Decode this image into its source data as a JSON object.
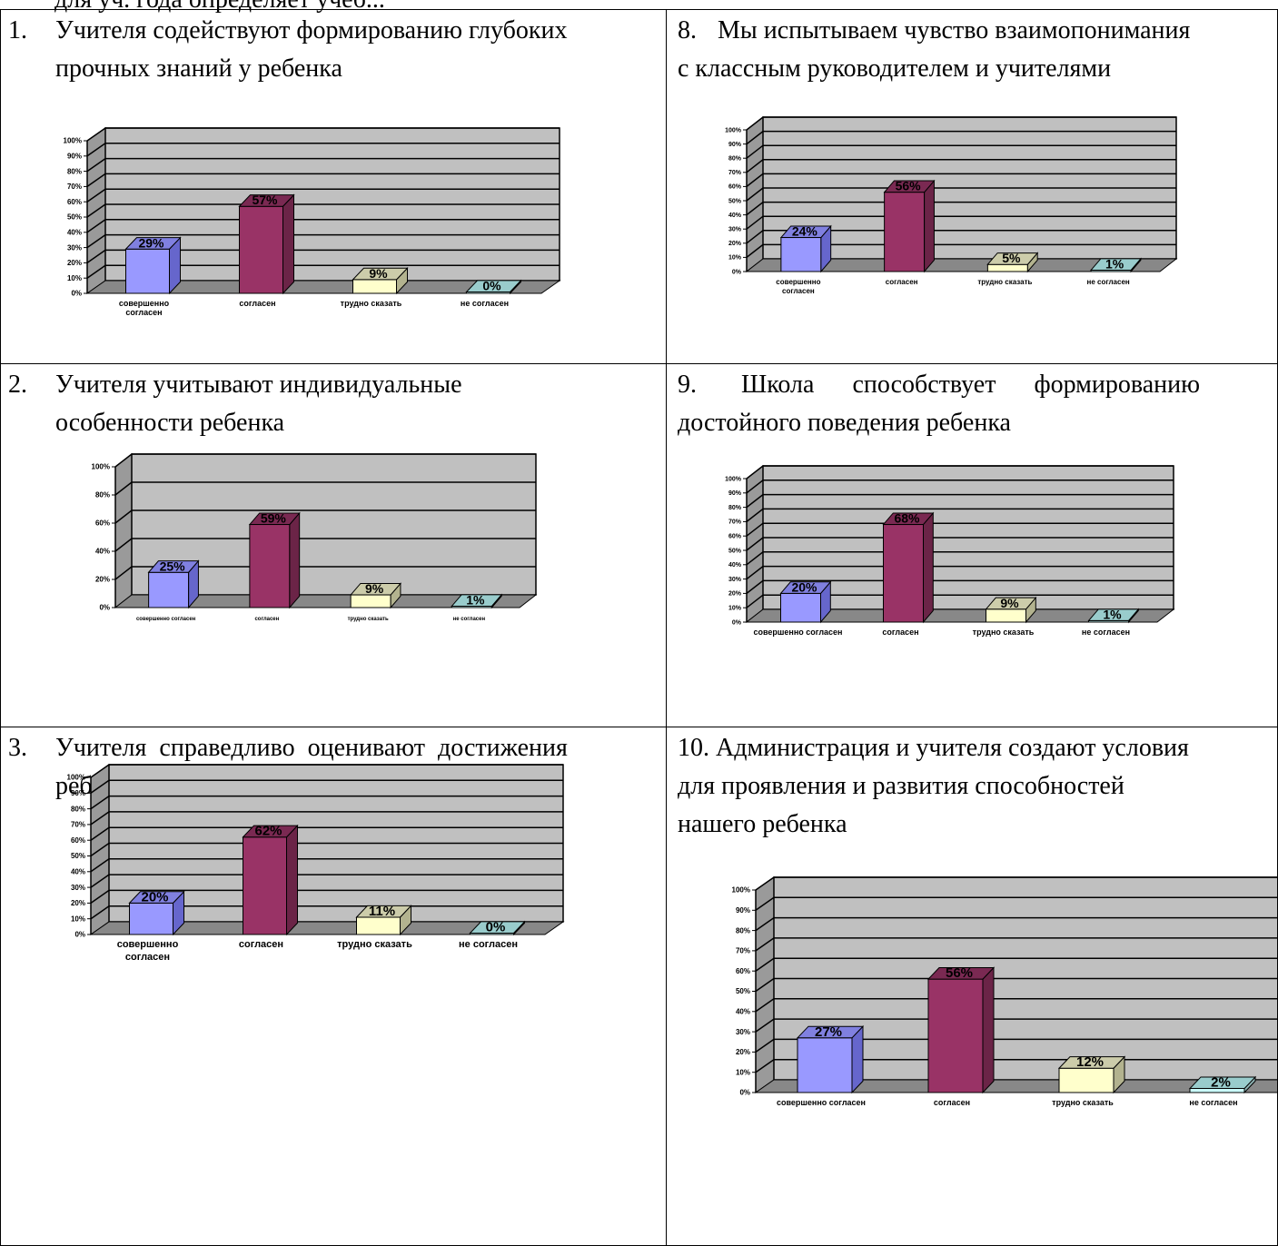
{
  "page": {
    "top_fragment": "для уч. года определяет учеб..."
  },
  "cells": [
    {
      "id": "q1",
      "number": "1.",
      "title": "Учителя содействуют формированию  глубоких прочных знаний  у ребенка",
      "title_lines": [
        "Учителя содействуют формированию  глубоких",
        "прочных знаний  у ребенка"
      ]
    },
    {
      "id": "q8",
      "number": "8.",
      "title": "Мы испытываем чувство взаимопонимания с классным руководителем и учителями",
      "title_lines": [
        "Мы испытываем чувство взаимопонимания",
        "с классным руководителем и учителями"
      ]
    },
    {
      "id": "q2",
      "number": "2.",
      "title": "Учителя учитывают индивидуальные особенности ребенка",
      "title_lines": [
        "Учителя учитывают индивидуальные",
        "особенности ребенка"
      ]
    },
    {
      "id": "q9",
      "number": "9.",
      "title": "Школа способствует формированию достойного поведения ребенка",
      "title_lines": [
        "Школа      способствует      формированию",
        "достойного поведения ребенка"
      ]
    },
    {
      "id": "q3",
      "number": "3.",
      "title": "Учителя справедливо оценивают достижения ребенка в учебе",
      "title_lines": [
        "Учителя  справедливо  оценивают  достижения",
        "ребенка в учебе"
      ]
    },
    {
      "id": "q10",
      "number": "10.",
      "title": "Администрация и учителя создают условия для проявления и развития способностей нашего ребенка",
      "title_lines": [
        "Администрация и учителя создают условия",
        "для проявления и развития способностей",
        "нашего ребенка"
      ]
    }
  ],
  "chart_data": [
    {
      "id": "q1",
      "type": "bar",
      "title": "",
      "xlabel": "",
      "ylabel": "",
      "categories": [
        "совершенно согласен",
        "согласен",
        "трудно сказать",
        "не согласен"
      ],
      "category_lines": [
        [
          "совершенно",
          "согласен"
        ],
        [
          "согласен"
        ],
        [
          "трудно сказать"
        ],
        [
          "не согласен"
        ]
      ],
      "values": [
        29,
        57,
        9,
        0
      ],
      "value_labels": [
        "29%",
        "57%",
        "9%",
        "0%"
      ],
      "ylim": [
        0,
        100
      ],
      "yticks": [
        "0%",
        "10%",
        "20%",
        "30%",
        "40%",
        "50%",
        "60%",
        "70%",
        "80%",
        "90%",
        "100%"
      ],
      "grid": true,
      "legend": "none",
      "style": "3d-column"
    },
    {
      "id": "q8",
      "type": "bar",
      "title": "",
      "xlabel": "",
      "ylabel": "",
      "categories": [
        "совершенно согласен",
        "согласен",
        "трудно сказать",
        "не согласен"
      ],
      "category_lines": [
        [
          "совершенно",
          "согласен"
        ],
        [
          "согласен"
        ],
        [
          "трудно сказать"
        ],
        [
          "не согласен"
        ]
      ],
      "values": [
        24,
        56,
        5,
        1
      ],
      "value_labels": [
        "24%",
        "56%",
        "5%",
        "1%"
      ],
      "ylim": [
        0,
        100
      ],
      "yticks": [
        "0%",
        "10%",
        "20%",
        "30%",
        "40%",
        "50%",
        "60%",
        "70%",
        "80%",
        "90%",
        "100%"
      ],
      "grid": true,
      "legend": "none",
      "style": "3d-column"
    },
    {
      "id": "q2",
      "type": "bar",
      "title": "",
      "xlabel": "",
      "ylabel": "",
      "categories": [
        "совершенно согласен",
        "согласен",
        "трудно сказать",
        "не согласен"
      ],
      "category_lines": [
        [
          "совершенно согласен"
        ],
        [
          "согласен"
        ],
        [
          "трудно сказать"
        ],
        [
          "не согласен"
        ]
      ],
      "values": [
        25,
        59,
        9,
        1
      ],
      "value_labels": [
        "25%",
        "59%",
        "9%",
        "1%"
      ],
      "ylim": [
        0,
        100
      ],
      "yticks": [
        "0%",
        "20%",
        "40%",
        "60%",
        "80%",
        "100%"
      ],
      "grid": true,
      "legend": "none",
      "style": "3d-column"
    },
    {
      "id": "q9",
      "type": "bar",
      "title": "",
      "xlabel": "",
      "ylabel": "",
      "categories": [
        "совершенно согласен",
        "согласен",
        "трудно сказать",
        "не согласен"
      ],
      "category_lines": [
        [
          "совершенно согласен"
        ],
        [
          "согласен"
        ],
        [
          "трудно сказать"
        ],
        [
          "не согласен"
        ]
      ],
      "values": [
        20,
        68,
        9,
        1
      ],
      "value_labels": [
        "20%",
        "68%",
        "9%",
        "1%"
      ],
      "ylim": [
        0,
        100
      ],
      "yticks": [
        "0%",
        "10%",
        "20%",
        "30%",
        "40%",
        "50%",
        "60%",
        "70%",
        "80%",
        "90%",
        "100%"
      ],
      "grid": true,
      "legend": "none",
      "style": "3d-column"
    },
    {
      "id": "q3",
      "type": "bar",
      "title": "",
      "xlabel": "",
      "ylabel": "",
      "categories": [
        "совершенно согласен",
        "согласен",
        "трудно сказать",
        "не согласен"
      ],
      "category_lines": [
        [
          "совершенно",
          "согласен"
        ],
        [
          "согласен"
        ],
        [
          "трудно сказать"
        ],
        [
          "не согласен"
        ]
      ],
      "values": [
        20,
        62,
        11,
        0
      ],
      "value_labels": [
        "20%",
        "62%",
        "11%",
        "0%"
      ],
      "ylim": [
        0,
        100
      ],
      "yticks": [
        "0%",
        "10%",
        "20%",
        "30%",
        "40%",
        "50%",
        "60%",
        "70%",
        "80%",
        "90%",
        "100%"
      ],
      "grid": true,
      "legend": "none",
      "style": "3d-column"
    },
    {
      "id": "q10",
      "type": "bar",
      "title": "",
      "xlabel": "",
      "ylabel": "",
      "categories": [
        "совершенно согласен",
        "согласен",
        "трудно сказать",
        "не согласен"
      ],
      "category_lines": [
        [
          "совершенно согласен"
        ],
        [
          "согласен"
        ],
        [
          "трудно сказать"
        ],
        [
          "не согласен"
        ]
      ],
      "values": [
        27,
        56,
        12,
        2
      ],
      "value_labels": [
        "27%",
        "56%",
        "12%",
        "2%"
      ],
      "ylim": [
        0,
        100
      ],
      "yticks": [
        "0%",
        "10%",
        "20%",
        "30%",
        "40%",
        "50%",
        "60%",
        "70%",
        "80%",
        "90%",
        "100%"
      ],
      "grid": true,
      "legend": "none",
      "style": "3d-column"
    }
  ],
  "colors": {
    "series": [
      {
        "front": "#9999ff",
        "side": "#6666cc",
        "top": "#8080e0"
      },
      {
        "front": "#993366",
        "side": "#6b2447",
        "top": "#7a2952"
      },
      {
        "front": "#ffffcc",
        "side": "#b3b38f",
        "top": "#ccccaa"
      },
      {
        "front": "#ccffff",
        "side": "#8fb3b3",
        "top": "#99cccc"
      }
    ],
    "wall": "#c0c0c0",
    "side_wall": "#9a9a9a",
    "floor": "#888888",
    "grid": "#000000"
  }
}
